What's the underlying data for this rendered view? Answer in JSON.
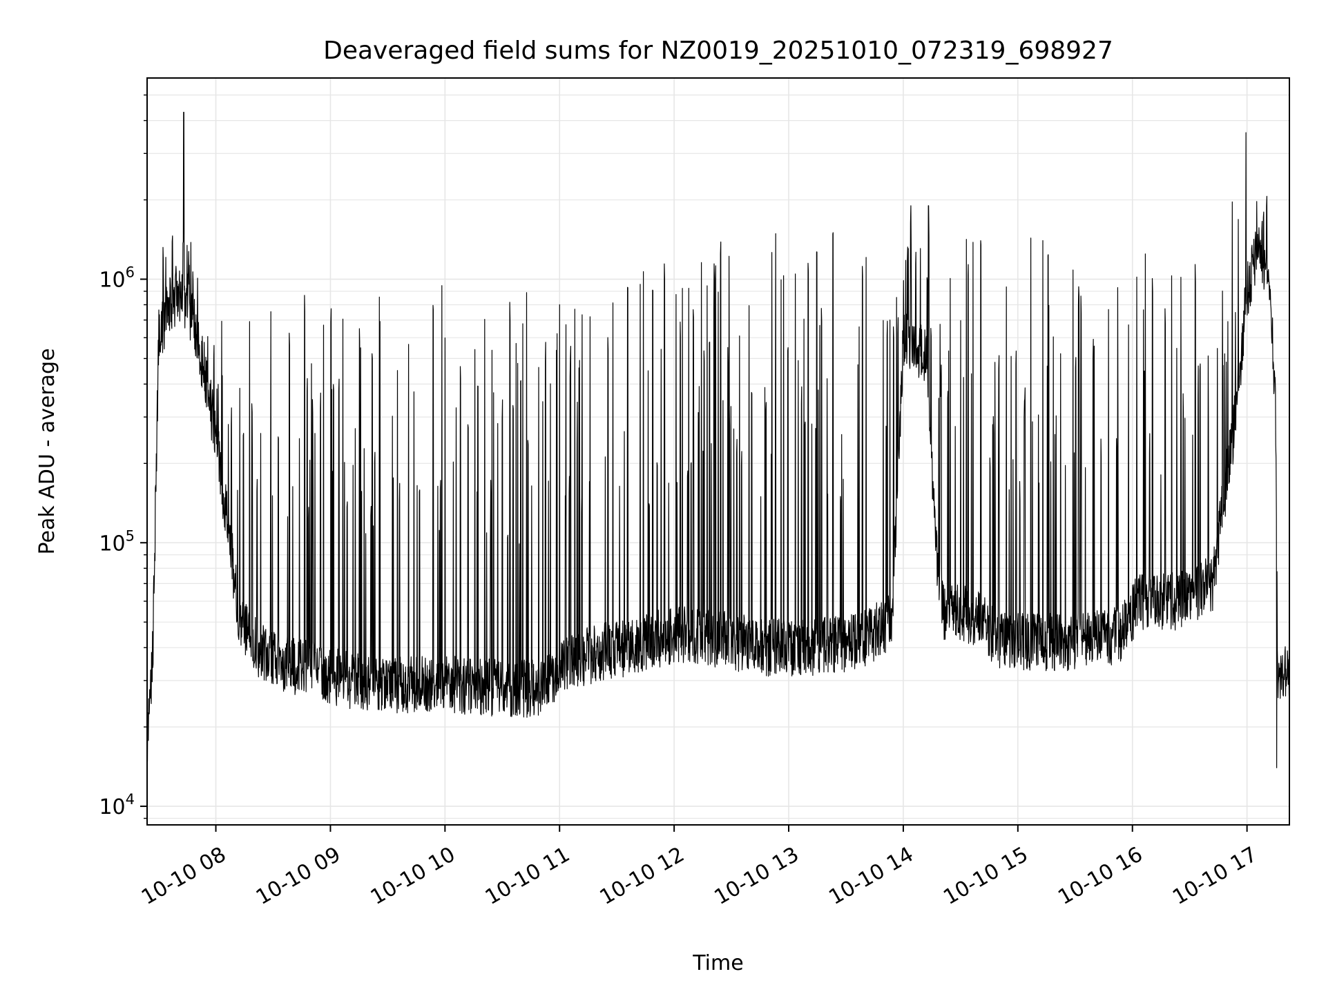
{
  "chart_data": {
    "type": "line",
    "title": "Deaveraged field sums for NZ0019_20251010_072319_698927",
    "xlabel": "Time",
    "ylabel": "Peak ADU - average",
    "yscale": "log",
    "ylim": [
      8500,
      5800000
    ],
    "xlim_hours": [
      7.4,
      17.37
    ],
    "grid": true,
    "line_color": "#000000",
    "x_ticks": [
      {
        "hour": 8,
        "label": "10-10 08"
      },
      {
        "hour": 9,
        "label": "10-10 09"
      },
      {
        "hour": 10,
        "label": "10-10 10"
      },
      {
        "hour": 11,
        "label": "10-10 11"
      },
      {
        "hour": 12,
        "label": "10-10 12"
      },
      {
        "hour": 13,
        "label": "10-10 13"
      },
      {
        "hour": 14,
        "label": "10-10 14"
      },
      {
        "hour": 15,
        "label": "10-10 15"
      },
      {
        "hour": 16,
        "label": "10-10 16"
      },
      {
        "hour": 17,
        "label": "10-10 17"
      }
    ],
    "y_ticks": [
      {
        "value": 10000,
        "base": "10",
        "exp": "4"
      },
      {
        "value": 100000,
        "base": "10",
        "exp": "5"
      },
      {
        "value": 1000000,
        "base": "10",
        "exp": "6"
      }
    ],
    "baseline_profile": [
      [
        7.4,
        17000
      ],
      [
        7.45,
        38000
      ],
      [
        7.5,
        600000
      ],
      [
        7.6,
        800000
      ],
      [
        7.7,
        900000
      ],
      [
        7.8,
        700000
      ],
      [
        7.9,
        450000
      ],
      [
        8.0,
        250000
      ],
      [
        8.1,
        120000
      ],
      [
        8.2,
        55000
      ],
      [
        8.3,
        42000
      ],
      [
        8.5,
        36000
      ],
      [
        8.8,
        33000
      ],
      [
        9.2,
        30000
      ],
      [
        9.6,
        29000
      ],
      [
        10.0,
        29000
      ],
      [
        10.5,
        28000
      ],
      [
        10.8,
        28000
      ],
      [
        11.0,
        33000
      ],
      [
        11.3,
        38000
      ],
      [
        11.6,
        40000
      ],
      [
        12.0,
        45000
      ],
      [
        12.4,
        43000
      ],
      [
        12.8,
        40000
      ],
      [
        13.2,
        40000
      ],
      [
        13.6,
        42000
      ],
      [
        13.9,
        50000
      ],
      [
        14.0,
        600000
      ],
      [
        14.2,
        500000
      ],
      [
        14.3,
        80000
      ],
      [
        14.35,
        55000
      ],
      [
        14.7,
        52000
      ],
      [
        14.8,
        43000
      ],
      [
        15.2,
        42000
      ],
      [
        15.6,
        42000
      ],
      [
        15.9,
        45000
      ],
      [
        16.05,
        60000
      ],
      [
        16.4,
        60000
      ],
      [
        16.7,
        70000
      ],
      [
        16.8,
        150000
      ],
      [
        16.9,
        300000
      ],
      [
        17.0,
        900000
      ],
      [
        17.1,
        1300000
      ],
      [
        17.2,
        1000000
      ],
      [
        17.25,
        300000
      ],
      [
        17.27,
        25000
      ],
      [
        17.3,
        35000
      ],
      [
        17.37,
        30000
      ]
    ],
    "spike_clusters": [
      {
        "from": 7.5,
        "to": 7.95,
        "peak": 1400000
      },
      {
        "from": 7.95,
        "to": 8.4,
        "peak": 700000
      },
      {
        "from": 8.4,
        "to": 9.3,
        "peak": 900000
      },
      {
        "from": 9.3,
        "to": 10.8,
        "peak": 950000
      },
      {
        "from": 10.8,
        "to": 11.6,
        "peak": 1000000
      },
      {
        "from": 11.6,
        "to": 12.8,
        "peak": 1300000
      },
      {
        "from": 12.8,
        "to": 14.0,
        "peak": 1500000
      },
      {
        "from": 14.0,
        "to": 14.3,
        "peak": 1700000
      },
      {
        "from": 14.3,
        "to": 16.0,
        "peak": 1500000
      },
      {
        "from": 16.0,
        "to": 16.7,
        "peak": 1400000
      },
      {
        "from": 16.7,
        "to": 17.2,
        "peak": 2200000
      }
    ],
    "notable_points": [
      {
        "hour": 7.72,
        "value": 4300000
      },
      {
        "hour": 16.99,
        "value": 3600000
      },
      {
        "hour": 14.22,
        "value": 1900000
      },
      {
        "hour": 17.26,
        "value": 14000
      }
    ]
  }
}
